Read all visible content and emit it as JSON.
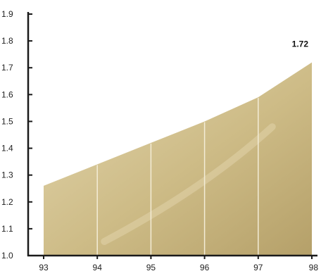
{
  "chart_data": {
    "type": "area",
    "x": [
      "93",
      "94",
      "95",
      "96",
      "97",
      "98"
    ],
    "values": [
      1.26,
      1.34,
      1.42,
      1.5,
      1.59,
      1.72
    ],
    "ylim": [
      1.0,
      1.9
    ],
    "yticks": [
      "1.0",
      "1.1",
      "1.2",
      "1.3",
      "1.4",
      "1.5",
      "1.6",
      "1.7",
      "1.8",
      "1.9"
    ],
    "data_labels": [
      {
        "x": "98",
        "text": "1.72"
      }
    ],
    "grid": false,
    "colors": {
      "fill": "#cdbb86",
      "fill_light": "#e3d6ae",
      "fill_dark": "#b5a069",
      "divider": "#f3ecd6",
      "axis": "#1a1a1a"
    }
  }
}
